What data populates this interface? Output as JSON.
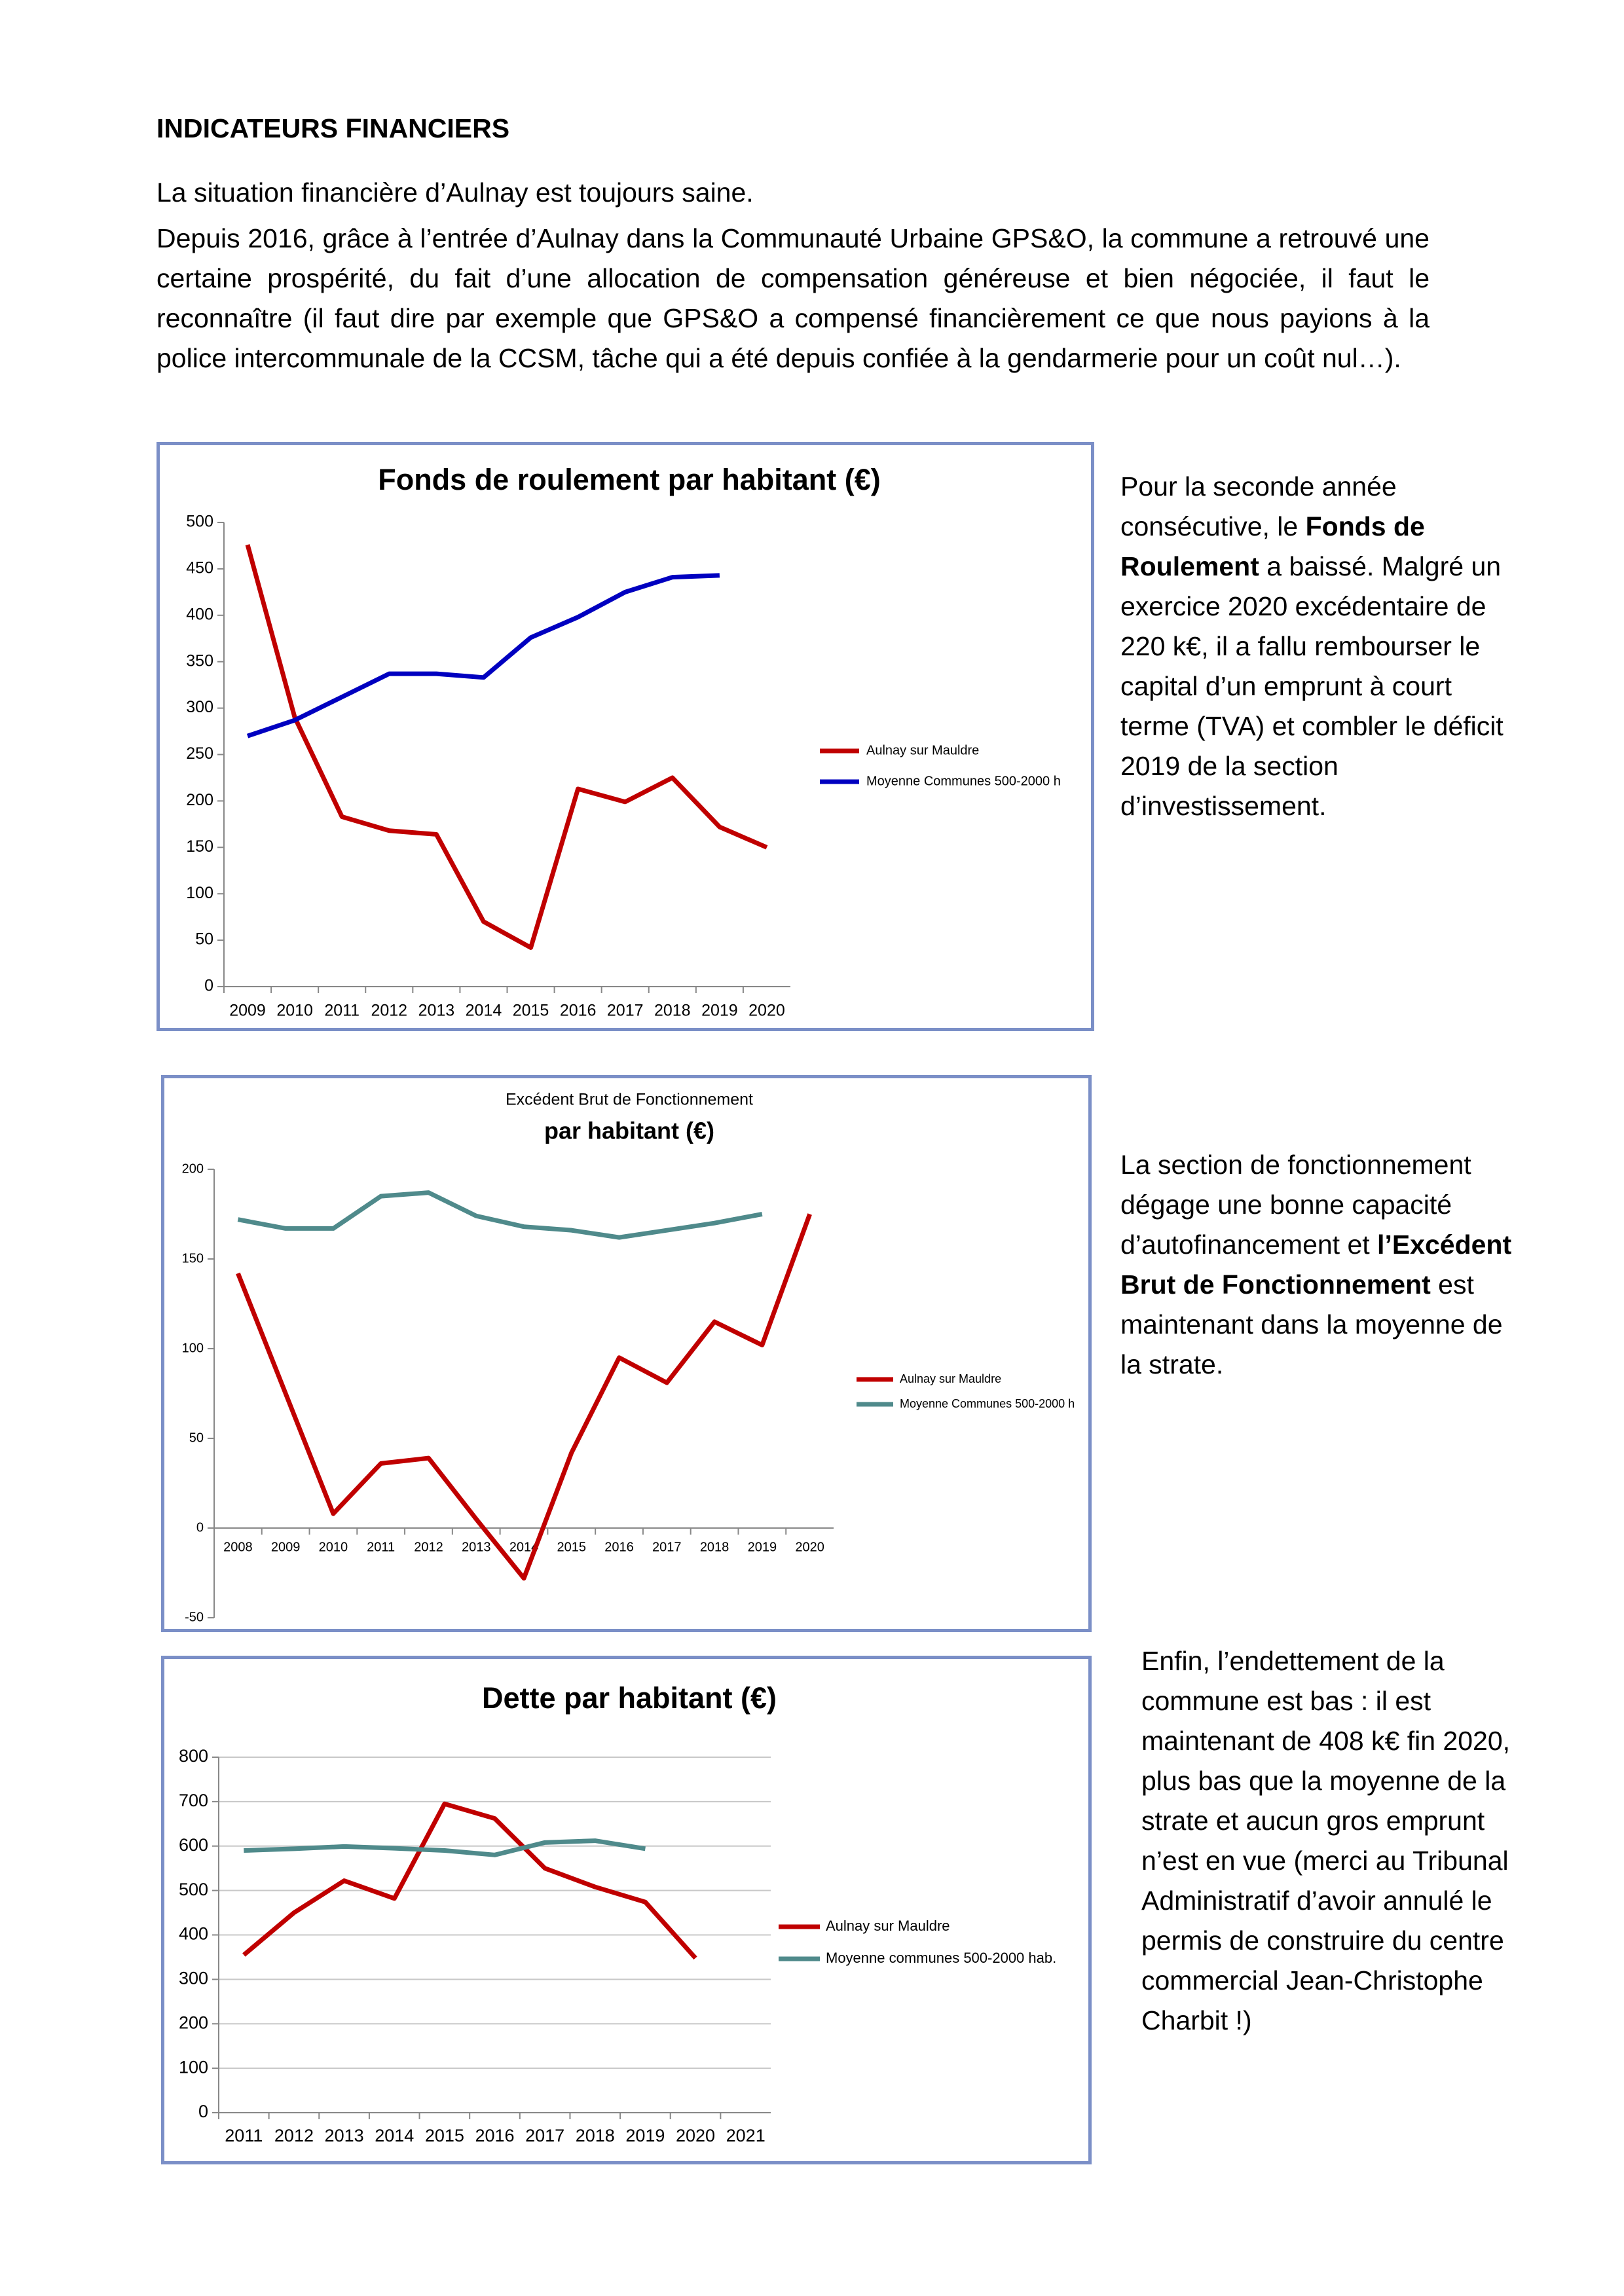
{
  "heading": "INDICATEURS FINANCIERS",
  "paragraphs": [
    "La situation financière d’Aulnay est toujours saine.",
    "Depuis 2016, grâce à l’entrée d’Aulnay dans la Communauté Urbaine GPS&O, la commune a retrouvé une certaine prospérité, du fait d’une allocation de compensation généreuse et bien négociée, il faut le reconnaître (il faut dire par exemple que GPS&O a compensé financièrement ce que nous payions à la police intercommunale de la CCSM, tâche qui a été depuis confiée à la gendarmerie pour un coût nul…)."
  ],
  "side_notes": [
    [
      "Pour la seconde année consécutive, le ",
      "Fonds de Roulement",
      " a baissé. Malgré un exercice 2020 excédentaire de 220 k€, il a fallu rembourser le capital d’un emprunt à court terme (TVA) et combler le déficit 2019 de la section d’investissement."
    ],
    [
      "La section de fonctionnement dégage une bonne capacité d’autofinancement et ",
      "l’Excédent Brut de Fonctionnement",
      " est maintenant dans la moyenne de la strate."
    ],
    [
      "Enfin, l’endettement de la commune est bas : il est maintenant de 408 k€ fin 2020, plus bas que la moyenne de la strate et aucun gros emprunt n’est en vue (merci au Tribunal Administratif d’avoir annulé le permis de construire du centre commercial Jean-Christophe Charbit !)"
    ]
  ],
  "chart_data": [
    {
      "type": "line",
      "title": "Fonds de roulement par habitant (€)",
      "categories": [
        "2009",
        "2010",
        "2011",
        "2012",
        "2013",
        "2014",
        "2015",
        "2016",
        "2017",
        "2018",
        "2019",
        "2020"
      ],
      "series": [
        {
          "name": "Aulnay sur Mauldre",
          "color": "#c00000",
          "values": [
            476,
            290,
            183,
            168,
            164,
            70,
            42,
            213,
            199,
            225,
            172,
            150
          ]
        },
        {
          "name": "Moyenne Communes 500-2000 h",
          "color": "#0000c0",
          "values": [
            270,
            287,
            312,
            337,
            337,
            333,
            376,
            398,
            425,
            441,
            443,
            null
          ]
        }
      ],
      "ylim": [
        0,
        500
      ],
      "yticks": [
        0,
        50,
        100,
        150,
        200,
        250,
        300,
        350,
        400,
        450,
        500
      ],
      "grid": false,
      "legend": "right"
    },
    {
      "type": "line",
      "title": "Excédent Brut de Fonctionnement",
      "subtitle": "par habitant (€)",
      "categories": [
        "2008",
        "2009",
        "2010",
        "2011",
        "2012",
        "2013",
        "2014",
        "2015",
        "2016",
        "2017",
        "2018",
        "2019",
        "2020"
      ],
      "series": [
        {
          "name": "Aulnay sur Mauldre",
          "color": "#c00000",
          "values": [
            142,
            75,
            8,
            36,
            39,
            5,
            -28,
            42,
            95,
            81,
            115,
            102,
            175
          ]
        },
        {
          "name": "Moyenne Communes 500-2000 h",
          "color": "#4f8a8b",
          "values": [
            172,
            167,
            167,
            185,
            187,
            174,
            168,
            166,
            162,
            166,
            170,
            175,
            null
          ]
        }
      ],
      "ylim": [
        -50,
        200
      ],
      "yticks": [
        -50,
        0,
        50,
        100,
        150,
        200
      ],
      "grid": false,
      "legend": "right"
    },
    {
      "type": "line",
      "title": "Dette par habitant (€)",
      "categories": [
        "2011",
        "2012",
        "2013",
        "2014",
        "2015",
        "2016",
        "2017",
        "2018",
        "2019",
        "2020",
        "2021"
      ],
      "series": [
        {
          "name": "Aulnay sur Mauldre",
          "color": "#c00000",
          "values": [
            355,
            450,
            522,
            482,
            695,
            662,
            550,
            508,
            474,
            348,
            null
          ]
        },
        {
          "name": "Moyenne communes 500-2000 hab.",
          "color": "#4f8a8b",
          "values": [
            590,
            594,
            599,
            595,
            590,
            580,
            608,
            612,
            594,
            null,
            null
          ]
        }
      ],
      "ylim": [
        0,
        800
      ],
      "yticks": [
        0,
        100,
        200,
        300,
        400,
        500,
        600,
        700,
        800
      ],
      "grid": true,
      "legend": "right"
    }
  ]
}
